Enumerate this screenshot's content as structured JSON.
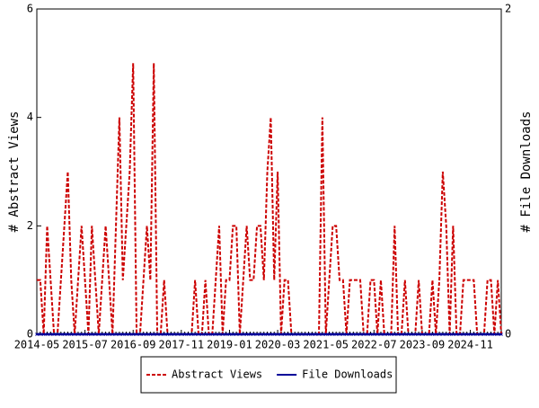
{
  "chart_data": {
    "type": "line",
    "ylabel": "# Abstract Views",
    "y2label": "# File Downloads",
    "categories": [
      "2014-05",
      null,
      null,
      null,
      null,
      null,
      null,
      null,
      null,
      null,
      null,
      null,
      null,
      null,
      "2015-07",
      null,
      null,
      null,
      null,
      null,
      null,
      null,
      null,
      null,
      null,
      null,
      null,
      null,
      "2016-09",
      null,
      null,
      null,
      null,
      null,
      null,
      null,
      null,
      null,
      null,
      null,
      null,
      null,
      "2017-11",
      null,
      null,
      null,
      null,
      null,
      null,
      null,
      null,
      null,
      null,
      null,
      null,
      null,
      "2019-01",
      null,
      null,
      null,
      null,
      null,
      null,
      null,
      null,
      null,
      null,
      null,
      null,
      null,
      "2020-03",
      null,
      null,
      null,
      null,
      null,
      null,
      null,
      null,
      null,
      null,
      null,
      null,
      null,
      "2021-05",
      null,
      null,
      null,
      null,
      null,
      null,
      null,
      null,
      null,
      null,
      null,
      null,
      null,
      "2022-07",
      null,
      null,
      null,
      null,
      null,
      null,
      null,
      null,
      null,
      null,
      null,
      null,
      null,
      "2023-09",
      null,
      null,
      null,
      null,
      null,
      null,
      null,
      null,
      null,
      null,
      null,
      null,
      null,
      "2024-11",
      null,
      null,
      null,
      null,
      null,
      null,
      null,
      null,
      null
    ],
    "series": [
      {
        "name": "Abstract Views",
        "color": "#cc0000",
        "line_style": "dashed",
        "axis": "y",
        "values": [
          1,
          1,
          0,
          2,
          1,
          0,
          0,
          1,
          2,
          3,
          1,
          0,
          1,
          2,
          1,
          0,
          2,
          1,
          0,
          1,
          2,
          1,
          0,
          2,
          4,
          1,
          2,
          3,
          5,
          0,
          0,
          1,
          2,
          1,
          5,
          0,
          0,
          1,
          0,
          0,
          0,
          0,
          0,
          0,
          0,
          0,
          1,
          0,
          0,
          1,
          0,
          0,
          1,
          2,
          0,
          1,
          1,
          2,
          2,
          0,
          1,
          2,
          1,
          1,
          2,
          2,
          1,
          3,
          4,
          1,
          3,
          0,
          1,
          1,
          0,
          0,
          0,
          0,
          0,
          0,
          0,
          0,
          0,
          4,
          0,
          1,
          2,
          2,
          1,
          1,
          0,
          1,
          1,
          1,
          1,
          0,
          0,
          1,
          1,
          0,
          1,
          0,
          0,
          0,
          2,
          0,
          0,
          1,
          0,
          0,
          0,
          1,
          0,
          0,
          0,
          1,
          0,
          1,
          3,
          2,
          0,
          2,
          0,
          0,
          1,
          1,
          1,
          1,
          0,
          0,
          0,
          1,
          1,
          0,
          1,
          0
        ]
      },
      {
        "name": "File Downloads",
        "color": "#000099",
        "line_style": "solid",
        "axis": "y2",
        "values": [
          0,
          0,
          0,
          0,
          0,
          0,
          0,
          0,
          0,
          0,
          0,
          0,
          0,
          0,
          0,
          0,
          0,
          0,
          0,
          0,
          0,
          0,
          0,
          0,
          0,
          0,
          0,
          0,
          0,
          0,
          0,
          0,
          0,
          0,
          0,
          0,
          0,
          0,
          0,
          0,
          0,
          0,
          0,
          0,
          0,
          0,
          0,
          0,
          0,
          0,
          0,
          0,
          0,
          0,
          0,
          0,
          0,
          0,
          0,
          0,
          0,
          0,
          0,
          0,
          0,
          0,
          0,
          0,
          0,
          0,
          0,
          0,
          0,
          0,
          0,
          0,
          0,
          0,
          0,
          0,
          0,
          0,
          0,
          0,
          0,
          0,
          0,
          0,
          0,
          0,
          0,
          0,
          0,
          0,
          0,
          0,
          0,
          0,
          0,
          0,
          0,
          0,
          0,
          0,
          0,
          0,
          0,
          0,
          0,
          0,
          0,
          0,
          0,
          0,
          0,
          0,
          0,
          0,
          0,
          0,
          0,
          0,
          0,
          0,
          0,
          0,
          0,
          0,
          0,
          0,
          0,
          0,
          0,
          0,
          0,
          0
        ]
      }
    ],
    "ylim": [
      0,
      6
    ],
    "yticks": [
      0,
      2,
      4,
      6
    ],
    "y2lim": [
      0,
      2
    ],
    "y2ticks": [
      0,
      2
    ],
    "grid": false,
    "legend": "bottom"
  }
}
